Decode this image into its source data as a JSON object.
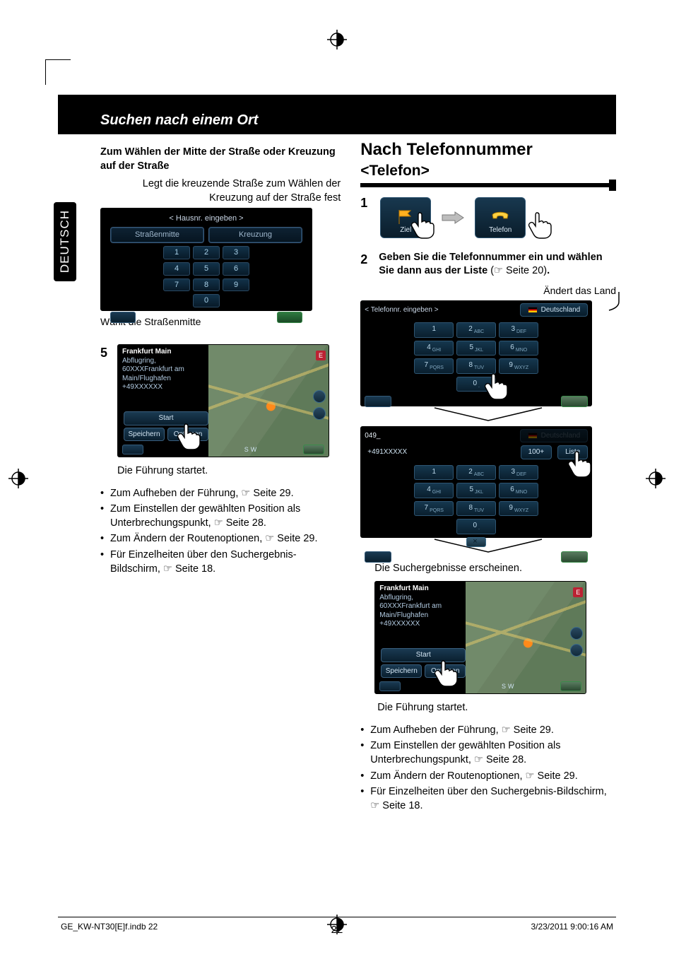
{
  "language_tab": "DEUTSCH",
  "header": {
    "title": "Suchen nach einem Ort"
  },
  "left": {
    "box_title": "Zum Wählen der Mitte der Straße oder Kreuzung auf der Straße",
    "box_sub": "Legt die kreuzende Straße zum Wählen der Kreuzung auf der Straße fest",
    "shot1": {
      "title": "< Hausnr. eingeben >",
      "btn_left": "Straßenmitte",
      "btn_right": "Kreuzung",
      "keys": [
        "1",
        "2",
        "3",
        "4",
        "5",
        "6",
        "7",
        "8",
        "9",
        "",
        "0",
        ""
      ]
    },
    "caption1": "Wählt die Straßenmitte",
    "step5": "5",
    "mapshot": {
      "line1": "Frankfurt Main",
      "line2": "Abflugring,",
      "line3": "60XXXFrankfurt am",
      "line4": "Main/Flughafen",
      "line5": "+49XXXXXX",
      "btn_start": "Start",
      "btn_save": "Speichern",
      "btn_opt": "Optionen",
      "sw": "SW",
      "east": "E"
    },
    "caption2": "Die Führung startet.",
    "bullets": [
      "Zum Aufheben der Führung, ☞ Seite 29.",
      "Zum Einstellen der gewählten Position als Unterbrechungspunkt, ☞ Seite 28.",
      "Zum Ändern der Routenoptionen, ☞ Seite 29.",
      "Für Einzelheiten über den Suchergebnis-Bildschirm, ☞ Seite 18."
    ]
  },
  "right": {
    "h1": "Nach Telefonnummer",
    "h2": "<Telefon>",
    "step1": "1",
    "tiles": {
      "ziel": "Ziel",
      "telefon": "Telefon"
    },
    "step2_num": "2",
    "step2_a": "Geben Sie die Telefonnummer ein und wählen Sie dann aus der Liste",
    "step2_b": " (☞ Seite 20)",
    "step2_dot": ".",
    "note_country": "Ändert das Land",
    "ph1": {
      "title": "< Telefonnr. eingeben >",
      "country": "Deutschland",
      "keys": [
        "1",
        "2 ABC",
        "3 DEF",
        "4 GHI",
        "5 JKL",
        "6 MNO",
        "7 PQRS",
        "8 TUV",
        "9 WXYZ",
        "",
        "0 .",
        ""
      ]
    },
    "ph2": {
      "dial": "049_",
      "num": "+491XXXXX",
      "mid": "100+",
      "liste": "Liste",
      "keys": [
        "1",
        "2 ABC",
        "3 DEF",
        "4 GHI",
        "5 JKL",
        "6 MNO",
        "7 PQRS",
        "8 TUV",
        "9 WXYZ",
        "",
        "0 .",
        ""
      ]
    },
    "result_caption": "Die Suchergebnisse erscheinen.",
    "caption2": "Die Führung startet.",
    "bullets": [
      "Zum Aufheben der Führung, ☞ Seite 29.",
      "Zum Einstellen der gewählten Position als Unterbrechungspunkt, ☞ Seite 28.",
      "Zum Ändern der Routenoptionen, ☞ Seite 29.",
      "Für Einzelheiten über den Suchergebnis-Bildschirm, ☞ Seite 18."
    ]
  },
  "page_number": "22",
  "footer_left": "GE_KW-NT30[E]f.indb   22",
  "footer_right": "3/23/2011   9:00:16 AM"
}
